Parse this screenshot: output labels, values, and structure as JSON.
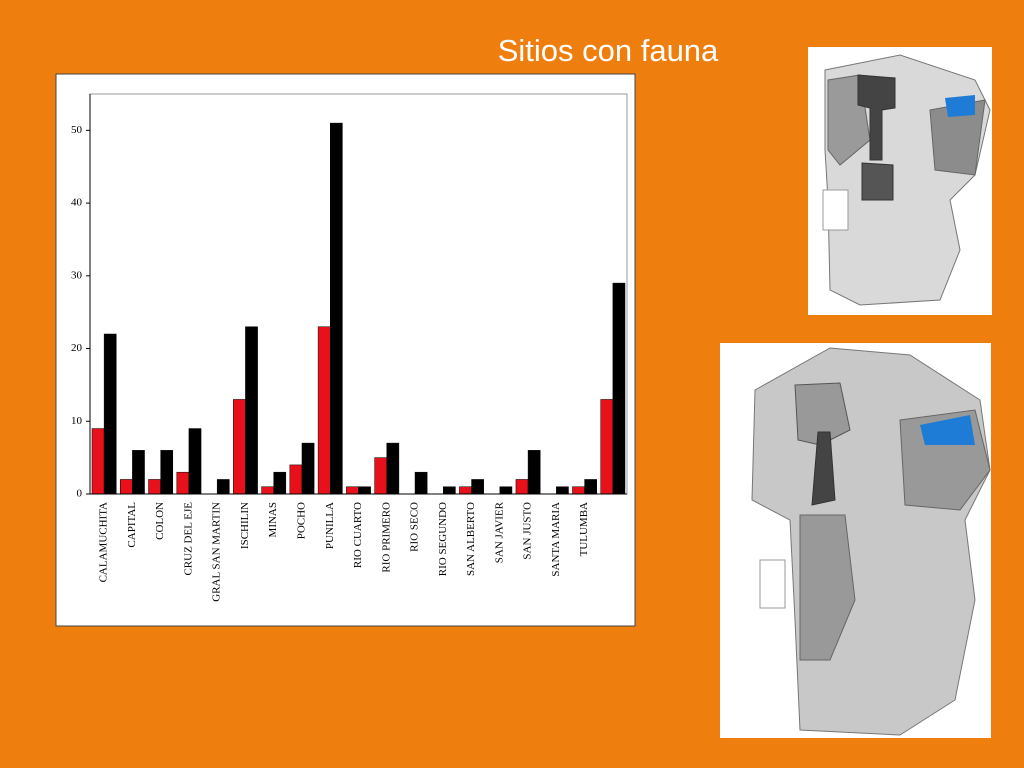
{
  "chart_data": {
    "type": "bar",
    "title": "Sitios con fauna",
    "categories": [
      "CALAMUCHITA",
      "CAPITAL",
      "COLON",
      "CRUZ DEL EJE",
      "GRAL SAN MARTIN",
      "ISCHILIN",
      "MINAS",
      "POCHO",
      "PUNILLA",
      "RIO CUARTO",
      "RIO PRIMERO",
      "RIO SECO",
      "RIO SEGUNDO",
      "SAN ALBERTO",
      "SAN JAVIER",
      "SAN JUSTO",
      "SANTA MARIA",
      "TULUMBA",
      null
    ],
    "series": [
      {
        "color": "#e8101a",
        "values": [
          9,
          2,
          2,
          3,
          0,
          13,
          1,
          4,
          23,
          1,
          5,
          0,
          0,
          1,
          0,
          2,
          0,
          1,
          13
        ]
      },
      {
        "color": "#000000",
        "values": [
          22,
          6,
          6,
          9,
          2,
          23,
          3,
          7,
          51,
          1,
          7,
          3,
          1,
          2,
          1,
          6,
          1,
          2,
          29
        ]
      }
    ],
    "ylim": [
      0,
      55
    ],
    "yticks": [
      0,
      10,
      20,
      30,
      40,
      50
    ]
  }
}
